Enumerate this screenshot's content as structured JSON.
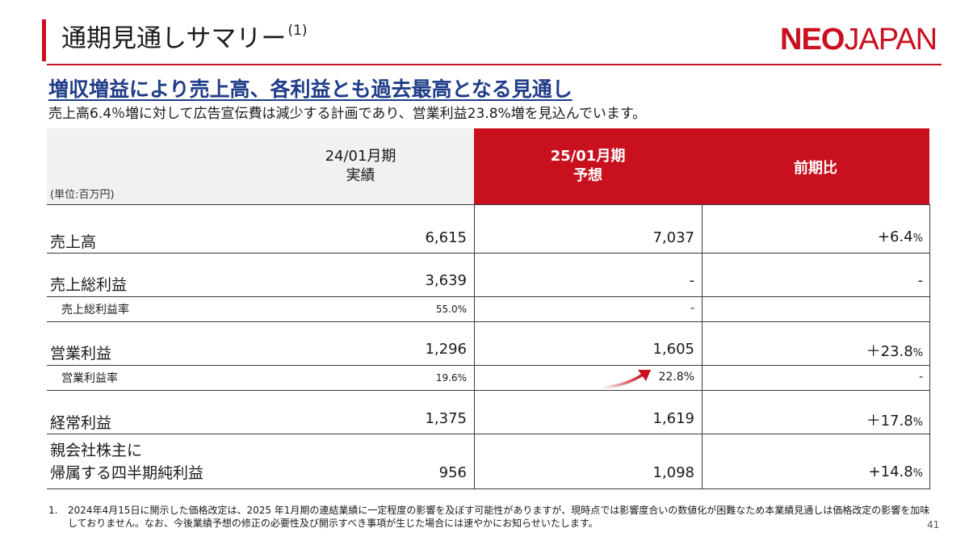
{
  "header": {
    "title": "通期見通しサマリー",
    "title_note": "(1)",
    "logo_bold": "NEO",
    "logo_light": "JAPAN"
  },
  "headline": "増収増益により売上高、各利益とも過去最高となる見通し",
  "subline": "売上高6.4％増に対して広告宣伝費は減少する計画であり、営業利益23.8%増を見込んでいます。",
  "table": {
    "unit": "(単位:百万円)",
    "col_prev": [
      "24/01月期",
      "実績"
    ],
    "col_fcst": [
      "25/01月期",
      "予想"
    ],
    "col_yoy": "前期比",
    "rows": [
      {
        "label": "売上高",
        "prev": "6,615",
        "fcst": "7,037",
        "yoy_sign": "+",
        "yoy_num": "6.4",
        "yoy_unit": "%"
      },
      {
        "label": "売上総利益",
        "prev": "3,639",
        "fcst": "-",
        "yoy_sign": "",
        "yoy_num": "-",
        "yoy_unit": ""
      },
      {
        "label": "売上総利益率",
        "prev": "55.0%",
        "fcst": "-",
        "yoy_sign": "",
        "yoy_num": "",
        "yoy_unit": ""
      },
      {
        "label": "営業利益",
        "prev": "1,296",
        "fcst": "1,605",
        "yoy_sign": "＋",
        "yoy_num": "23.8",
        "yoy_unit": "%"
      },
      {
        "label": "営業利益率",
        "prev": "19.6%",
        "fcst": "22.8%",
        "yoy_sign": "",
        "yoy_num": "-",
        "yoy_unit": ""
      },
      {
        "label": "経常利益",
        "prev": "1,375",
        "fcst": "1,619",
        "yoy_sign": "＋",
        "yoy_num": "17.8",
        "yoy_unit": "%"
      },
      {
        "label_lines": [
          "親会社株主に",
          "帰属する四半期純利益"
        ],
        "prev": "956",
        "fcst": "1,098",
        "yoy_sign": "+",
        "yoy_num": "14.8",
        "yoy_unit": "%"
      }
    ]
  },
  "footnote": {
    "number": "1.",
    "text": "2024年4月15日に開示した価格改定は、2025 年1月期の連結業績に一定程度の影響を及ぼす可能性がありますが、現時点では影響度合いの数値化が困難なため本業績見通しは価格改定の影響を加味しておりません。なお、今後業績予想の修正の必要性及び開示すべき事項が生じた場合には速やかにお知らせいたします。"
  },
  "page_number": "41",
  "colors": {
    "accent_red": "#c8101f",
    "headline_blue": "#1f3c88"
  },
  "icons": {
    "trend": "up-arrow-icon"
  }
}
